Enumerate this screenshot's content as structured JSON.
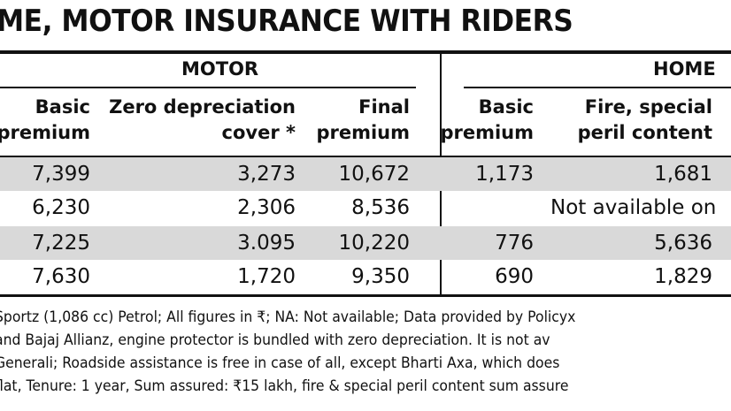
{
  "title": "ME, MOTOR INSURANCE WITH RIDERS",
  "groups": {
    "motor": "MOTOR",
    "home": "HOME"
  },
  "headers": {
    "basic_line1": "Basic",
    "basic_line2": "premium",
    "zero_dep_line1": "Zero depreciation",
    "zero_dep_line2": "cover *",
    "final_line1": "Final",
    "final_line2": "premium",
    "home_basic_line1": "Basic",
    "home_basic_line2": "premium",
    "fire_line1": "Fire, special",
    "fire_line2": "peril content"
  },
  "rows": [
    {
      "basic": "7,399",
      "zero_dep": "3,273",
      "final": "10,672",
      "home_basic": "1,173",
      "fire": "1,681",
      "note": ""
    },
    {
      "basic": "6,230",
      "zero_dep": "2,306",
      "final": "8,536",
      "home_basic": "",
      "fire": "",
      "note": "Not available on"
    },
    {
      "basic": "7,225",
      "zero_dep": "3.095",
      "final": "10,220",
      "home_basic": "776",
      "fire": "5,636",
      "note": ""
    },
    {
      "basic": "7,630",
      "zero_dep": "1,720",
      "final": "9,350",
      "home_basic": "690",
      "fire": "1,829",
      "note": ""
    }
  ],
  "footnotes": [
    "Sportz (1,086 cc) Petrol; All figures in ₹; NA: Not available; Data provided by Policyx",
    "and Bajaj Allianz, engine protector is bundled with zero depreciation. It is not av",
    "Generali; Roadside assistance is free in case of all, except Bharti Axa, which does",
    "flat, Tenure: 1 year,  Sum assured: ₹15 lakh, fire & special peril content sum assure"
  ],
  "colors": {
    "row_shade": "#d9d9d9",
    "rule": "#111111"
  }
}
